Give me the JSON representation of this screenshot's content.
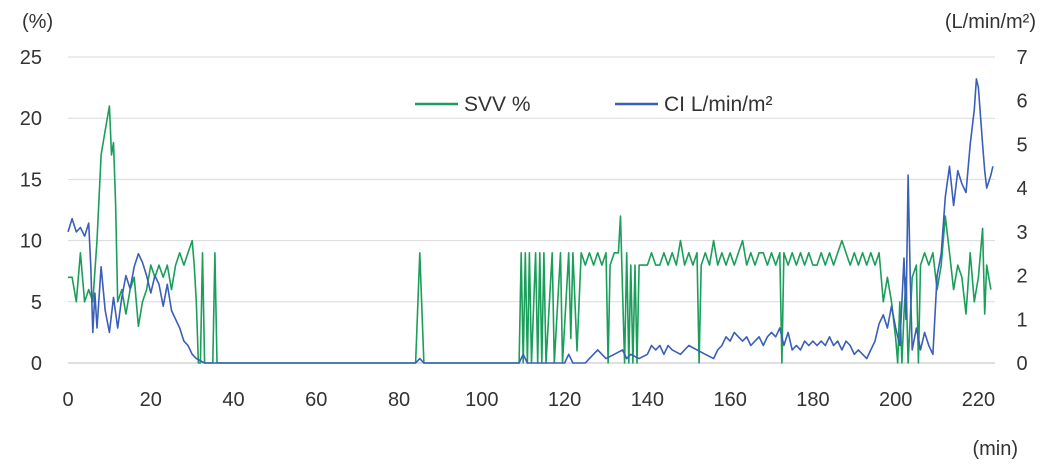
{
  "chart_data": {
    "type": "line",
    "left_unit": "(%)",
    "right_unit": "(L/min/m²)",
    "x_unit": "(min)",
    "xlim": [
      0,
      224
    ],
    "ylim_left": [
      0,
      25
    ],
    "ylim_right": [
      0,
      7
    ],
    "x_ticks": [
      0,
      20,
      40,
      60,
      80,
      100,
      120,
      140,
      160,
      180,
      200,
      220
    ],
    "y_left_ticks": [
      0,
      5,
      10,
      15,
      20,
      25
    ],
    "y_right_ticks": [
      0,
      1,
      2,
      3,
      4,
      5,
      6,
      7
    ],
    "grid": true,
    "legend_position": "top-center",
    "series": [
      {
        "name": "SVV %",
        "axis": "left",
        "color": "#1a9e5a",
        "points": [
          [
            0,
            7
          ],
          [
            1,
            7
          ],
          [
            2,
            5
          ],
          [
            3,
            9
          ],
          [
            4,
            5
          ],
          [
            5,
            6
          ],
          [
            6,
            5
          ],
          [
            7,
            10
          ],
          [
            8,
            17
          ],
          [
            9,
            19
          ],
          [
            10,
            21
          ],
          [
            10.5,
            17
          ],
          [
            11,
            18
          ],
          [
            11.5,
            13
          ],
          [
            12,
            5
          ],
          [
            13,
            6
          ],
          [
            14,
            4
          ],
          [
            15,
            6
          ],
          [
            16,
            7
          ],
          [
            17,
            3
          ],
          [
            18,
            5
          ],
          [
            19,
            6
          ],
          [
            20,
            8
          ],
          [
            21,
            7
          ],
          [
            22,
            8
          ],
          [
            23,
            7
          ],
          [
            24,
            8
          ],
          [
            25,
            6
          ],
          [
            26,
            8
          ],
          [
            27,
            9
          ],
          [
            28,
            8
          ],
          [
            29,
            9
          ],
          [
            30,
            10
          ],
          [
            30.5,
            8
          ],
          [
            31,
            5
          ],
          [
            31.5,
            0
          ],
          [
            32,
            0
          ],
          [
            32.5,
            9
          ],
          [
            33,
            0
          ],
          [
            35,
            0
          ],
          [
            35.5,
            9
          ],
          [
            36,
            0
          ],
          [
            84,
            0
          ],
          [
            85,
            9
          ],
          [
            86,
            0
          ],
          [
            109,
            0
          ],
          [
            109.5,
            9
          ],
          [
            110,
            0
          ],
          [
            110.5,
            9
          ],
          [
            111,
            0
          ],
          [
            111.5,
            9
          ],
          [
            112,
            0
          ],
          [
            113,
            9
          ],
          [
            113.5,
            0
          ],
          [
            114,
            9
          ],
          [
            114.5,
            0
          ],
          [
            115,
            9
          ],
          [
            115.5,
            0
          ],
          [
            117,
            9
          ],
          [
            117.5,
            0
          ],
          [
            119,
            9
          ],
          [
            119.5,
            0
          ],
          [
            121,
            9
          ],
          [
            121.5,
            2
          ],
          [
            122,
            9
          ],
          [
            123,
            1
          ],
          [
            124,
            9
          ],
          [
            125,
            8
          ],
          [
            126,
            9
          ],
          [
            127,
            8
          ],
          [
            128,
            9
          ],
          [
            129,
            8
          ],
          [
            130,
            9
          ],
          [
            130.5,
            0
          ],
          [
            131,
            8
          ],
          [
            132,
            9
          ],
          [
            133,
            9
          ],
          [
            133.5,
            12
          ],
          [
            134,
            6
          ],
          [
            134.5,
            0
          ],
          [
            135,
            9
          ],
          [
            135.5,
            0
          ],
          [
            136,
            8
          ],
          [
            136.5,
            0
          ],
          [
            137,
            8
          ],
          [
            137.5,
            0
          ],
          [
            138,
            8
          ],
          [
            139,
            8
          ],
          [
            140,
            8
          ],
          [
            141,
            9
          ],
          [
            142,
            8
          ],
          [
            143,
            8
          ],
          [
            144,
            9
          ],
          [
            145,
            8
          ],
          [
            146,
            9
          ],
          [
            147,
            8
          ],
          [
            148,
            10
          ],
          [
            149,
            8
          ],
          [
            150,
            9
          ],
          [
            151,
            8
          ],
          [
            152,
            9
          ],
          [
            152.5,
            0
          ],
          [
            153,
            8
          ],
          [
            154,
            9
          ],
          [
            155,
            8
          ],
          [
            156,
            10
          ],
          [
            157,
            8
          ],
          [
            158,
            9
          ],
          [
            159,
            8
          ],
          [
            160,
            9
          ],
          [
            161,
            8
          ],
          [
            162,
            9
          ],
          [
            163,
            10
          ],
          [
            164,
            8
          ],
          [
            165,
            9
          ],
          [
            166,
            8
          ],
          [
            167,
            9
          ],
          [
            168,
            9
          ],
          [
            169,
            8
          ],
          [
            170,
            9
          ],
          [
            171,
            8
          ],
          [
            172,
            9
          ],
          [
            172.5,
            0
          ],
          [
            173,
            9
          ],
          [
            174,
            8
          ],
          [
            175,
            9
          ],
          [
            176,
            8
          ],
          [
            177,
            9
          ],
          [
            178,
            8
          ],
          [
            179,
            9
          ],
          [
            180,
            8
          ],
          [
            181,
            8
          ],
          [
            182,
            9
          ],
          [
            183,
            8
          ],
          [
            184,
            9
          ],
          [
            185,
            8
          ],
          [
            186,
            9
          ],
          [
            187,
            10
          ],
          [
            188,
            9
          ],
          [
            189,
            8
          ],
          [
            190,
            9
          ],
          [
            191,
            8
          ],
          [
            192,
            9
          ],
          [
            193,
            8
          ],
          [
            194,
            9
          ],
          [
            195,
            8
          ],
          [
            196,
            9
          ],
          [
            197,
            5
          ],
          [
            198,
            7
          ],
          [
            199,
            5
          ],
          [
            200,
            2
          ],
          [
            200.5,
            0
          ],
          [
            201,
            5
          ],
          [
            201.5,
            0
          ],
          [
            202,
            4
          ],
          [
            202.5,
            7
          ],
          [
            203,
            0
          ],
          [
            204,
            7
          ],
          [
            205,
            8
          ],
          [
            205.5,
            0
          ],
          [
            206,
            8
          ],
          [
            207,
            9
          ],
          [
            208,
            8
          ],
          [
            209,
            9
          ],
          [
            210,
            6
          ],
          [
            211,
            8
          ],
          [
            212,
            12
          ],
          [
            213,
            9
          ],
          [
            214,
            6
          ],
          [
            215,
            8
          ],
          [
            216,
            7
          ],
          [
            217,
            4
          ],
          [
            218,
            9
          ],
          [
            219,
            5
          ],
          [
            220,
            7
          ],
          [
            221,
            11
          ],
          [
            221.5,
            4
          ],
          [
            222,
            8
          ],
          [
            223,
            6
          ]
        ]
      },
      {
        "name": "CI L/min/m²",
        "axis": "right",
        "color": "#3a5fb8",
        "points": [
          [
            0,
            3
          ],
          [
            1,
            3.3
          ],
          [
            2,
            3
          ],
          [
            3,
            3.1
          ],
          [
            4,
            2.9
          ],
          [
            5,
            3.2
          ],
          [
            5.5,
            2.2
          ],
          [
            6,
            0.7
          ],
          [
            6.5,
            1.6
          ],
          [
            7,
            0.8
          ],
          [
            8,
            2.2
          ],
          [
            9,
            1.2
          ],
          [
            10,
            0.7
          ],
          [
            11,
            1.5
          ],
          [
            12,
            0.8
          ],
          [
            13,
            1.5
          ],
          [
            14,
            2
          ],
          [
            15,
            1.7
          ],
          [
            16,
            2.2
          ],
          [
            17,
            2.5
          ],
          [
            18,
            2.3
          ],
          [
            19,
            2
          ],
          [
            20,
            1.6
          ],
          [
            21,
            2
          ],
          [
            22,
            1.8
          ],
          [
            23,
            1.3
          ],
          [
            24,
            1.8
          ],
          [
            25,
            1.2
          ],
          [
            26,
            1
          ],
          [
            27,
            0.8
          ],
          [
            28,
            0.5
          ],
          [
            29,
            0.4
          ],
          [
            30,
            0.2
          ],
          [
            31,
            0.1
          ],
          [
            33,
            0
          ],
          [
            84,
            0
          ],
          [
            85,
            0.1
          ],
          [
            86,
            0
          ],
          [
            109,
            0
          ],
          [
            110,
            0.2
          ],
          [
            111,
            0
          ],
          [
            120,
            0
          ],
          [
            121,
            0.2
          ],
          [
            122,
            0
          ],
          [
            125,
            0
          ],
          [
            126,
            0.1
          ],
          [
            128,
            0.3
          ],
          [
            130,
            0.1
          ],
          [
            132,
            0.2
          ],
          [
            134,
            0.3
          ],
          [
            135,
            0.1
          ],
          [
            136,
            0.2
          ],
          [
            138,
            0.1
          ],
          [
            140,
            0.2
          ],
          [
            141,
            0.4
          ],
          [
            142,
            0.3
          ],
          [
            143,
            0.4
          ],
          [
            144,
            0.2
          ],
          [
            145,
            0.4
          ],
          [
            146,
            0.3
          ],
          [
            148,
            0.2
          ],
          [
            150,
            0.4
          ],
          [
            152,
            0.3
          ],
          [
            154,
            0.2
          ],
          [
            156,
            0.1
          ],
          [
            157,
            0.3
          ],
          [
            158,
            0.4
          ],
          [
            159,
            0.6
          ],
          [
            160,
            0.5
          ],
          [
            161,
            0.7
          ],
          [
            162,
            0.6
          ],
          [
            163,
            0.5
          ],
          [
            164,
            0.6
          ],
          [
            165,
            0.4
          ],
          [
            166,
            0.5
          ],
          [
            167,
            0.6
          ],
          [
            168,
            0.4
          ],
          [
            169,
            0.6
          ],
          [
            170,
            0.7
          ],
          [
            171,
            0.6
          ],
          [
            172,
            0.8
          ],
          [
            173,
            0.4
          ],
          [
            174,
            0.7
          ],
          [
            175,
            0.3
          ],
          [
            176,
            0.4
          ],
          [
            177,
            0.3
          ],
          [
            178,
            0.5
          ],
          [
            179,
            0.4
          ],
          [
            180,
            0.5
          ],
          [
            181,
            0.4
          ],
          [
            182,
            0.5
          ],
          [
            183,
            0.4
          ],
          [
            184,
            0.6
          ],
          [
            185,
            0.4
          ],
          [
            186,
            0.5
          ],
          [
            187,
            0.3
          ],
          [
            188,
            0.5
          ],
          [
            189,
            0.4
          ],
          [
            190,
            0.2
          ],
          [
            191,
            0.3
          ],
          [
            192,
            0.2
          ],
          [
            193,
            0.1
          ],
          [
            194,
            0.3
          ],
          [
            195,
            0.5
          ],
          [
            196,
            0.9
          ],
          [
            197,
            1.1
          ],
          [
            198,
            0.8
          ],
          [
            199,
            1.3
          ],
          [
            200,
            0.8
          ],
          [
            201,
            0.4
          ],
          [
            202,
            2.4
          ],
          [
            202.5,
            1
          ],
          [
            203,
            4.3
          ],
          [
            203.5,
            2
          ],
          [
            204,
            0.3
          ],
          [
            205,
            0.8
          ],
          [
            206,
            0.3
          ],
          [
            207,
            0.7
          ],
          [
            208,
            0.4
          ],
          [
            209,
            0.2
          ],
          [
            210,
            2
          ],
          [
            211,
            2.5
          ],
          [
            212,
            3.8
          ],
          [
            213,
            4.5
          ],
          [
            214,
            3.6
          ],
          [
            215,
            4.4
          ],
          [
            216,
            4.1
          ],
          [
            217,
            3.9
          ],
          [
            218,
            5
          ],
          [
            219,
            5.8
          ],
          [
            219.5,
            6.5
          ],
          [
            220,
            6.3
          ],
          [
            221,
            5
          ],
          [
            221.5,
            4.4
          ],
          [
            222,
            4
          ],
          [
            223,
            4.3
          ],
          [
            223.5,
            4.5
          ]
        ]
      }
    ]
  }
}
